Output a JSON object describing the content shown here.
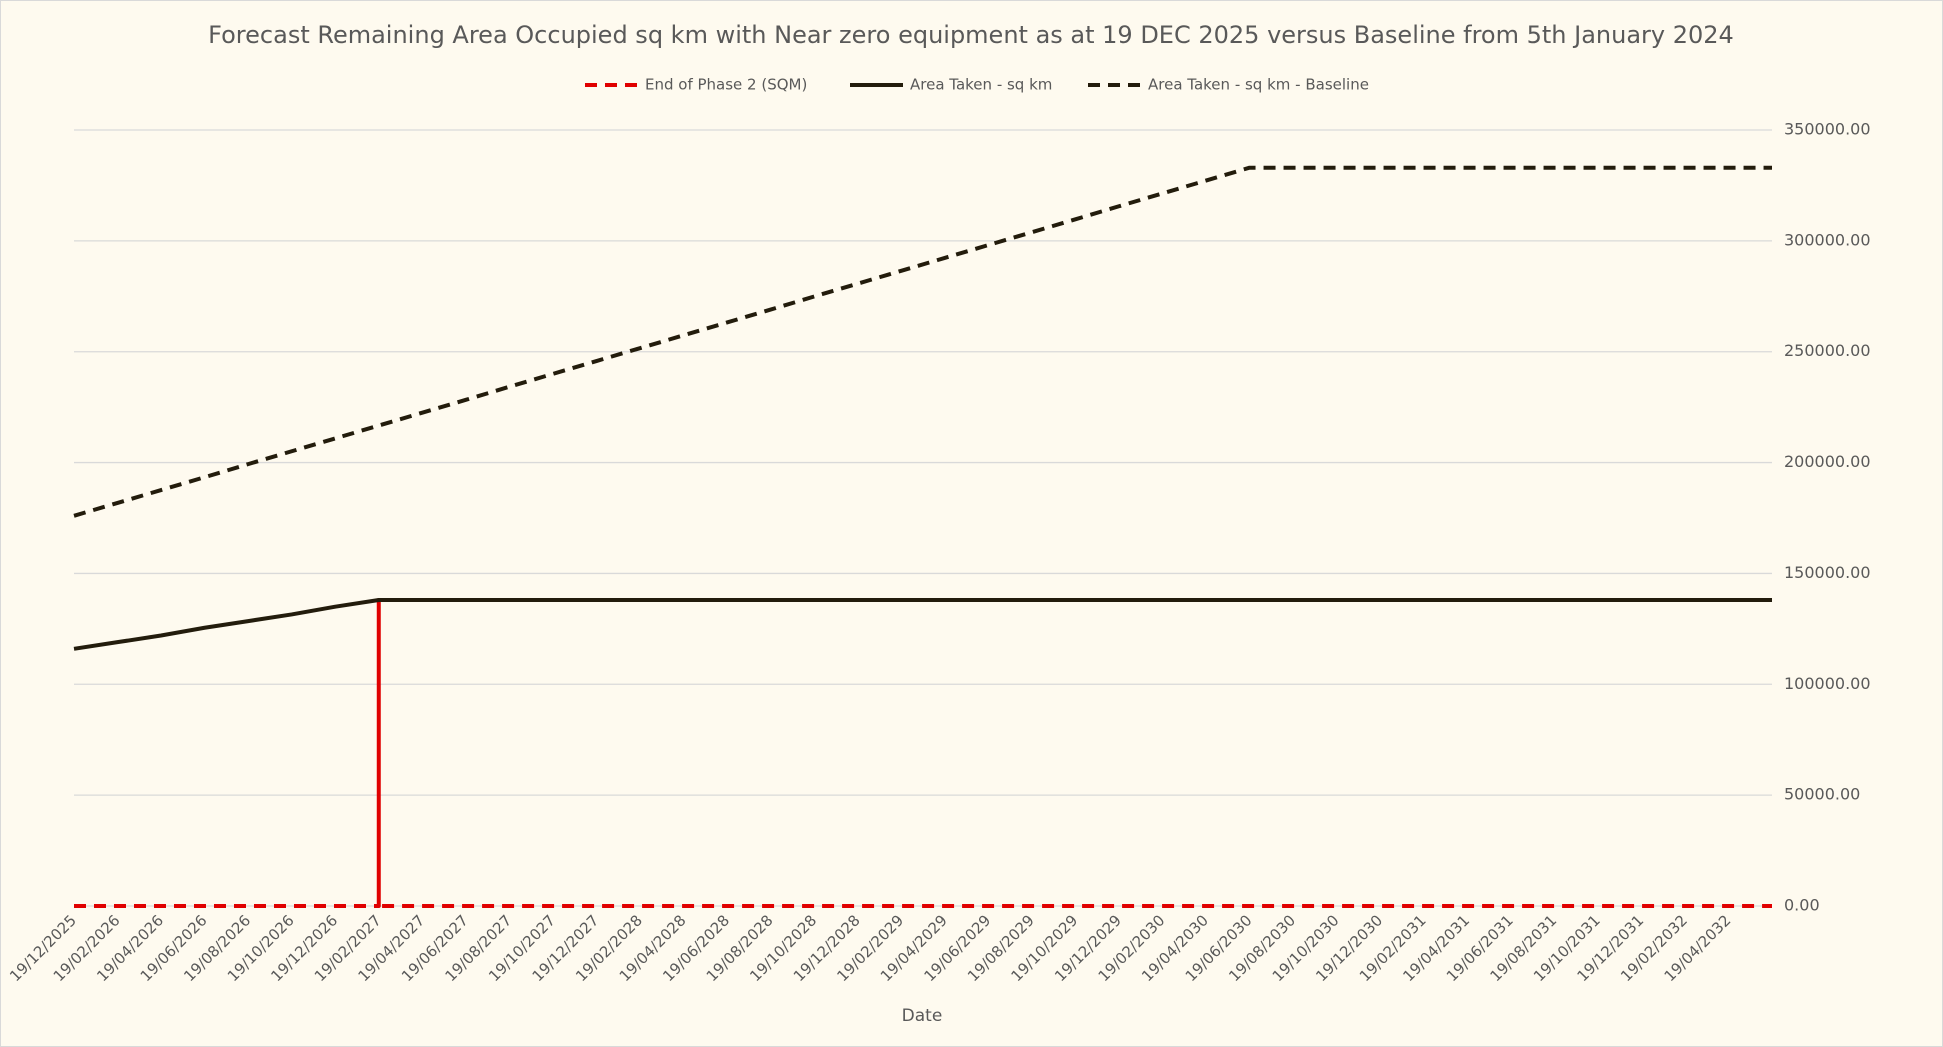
{
  "chart_data": {
    "type": "line",
    "title": "Forecast Remaining Area Occupied sq km with Near zero equipment as at 19 DEC 2025 versus Baseline from 5th January 2024",
    "x_label": "Date",
    "categories": [
      "19/12/2025",
      "19/02/2026",
      "19/04/2026",
      "19/06/2026",
      "19/08/2026",
      "19/10/2026",
      "19/12/2026",
      "19/02/2027",
      "19/04/2027",
      "19/06/2027",
      "19/08/2027",
      "19/10/2027",
      "19/12/2027",
      "19/02/2028",
      "19/04/2028",
      "19/06/2028",
      "19/08/2028",
      "19/10/2028",
      "19/12/2028",
      "19/02/2029",
      "19/04/2029",
      "19/06/2029",
      "19/08/2029",
      "19/10/2029",
      "19/12/2029",
      "19/02/2030",
      "19/04/2030",
      "19/06/2030",
      "19/08/2030",
      "19/10/2030",
      "19/12/2030",
      "19/02/2031",
      "19/04/2031",
      "19/06/2031",
      "19/08/2031",
      "19/10/2031",
      "19/12/2031",
      "19/02/2032",
      "19/04/2032",
      null
    ],
    "series": [
      {
        "name": "End of Phase 2 (SQM)",
        "color": "#e00000",
        "dash": true,
        "spike": true,
        "values": [
          0,
          0,
          0,
          0,
          0,
          0,
          0,
          138000,
          0,
          0,
          0,
          0,
          0,
          0,
          0,
          0,
          0,
          0,
          0,
          0,
          0,
          0,
          0,
          0,
          0,
          0,
          0,
          0,
          0,
          0,
          0,
          0,
          0,
          0,
          0,
          0,
          0,
          0,
          0,
          0
        ]
      },
      {
        "name": "Area Taken - sq km",
        "color": "#231c0c",
        "dash": false,
        "values": [
          116000,
          119000,
          122000,
          125500,
          128500,
          131500,
          135000,
          138000,
          138000,
          138000,
          138000,
          138000,
          138000,
          138000,
          138000,
          138000,
          138000,
          138000,
          138000,
          138000,
          138000,
          138000,
          138000,
          138000,
          138000,
          138000,
          138000,
          138000,
          138000,
          138000,
          138000,
          138000,
          138000,
          138000,
          138000,
          138000,
          138000,
          138000,
          138000,
          138000
        ]
      },
      {
        "name": "Area Taken - sq km - Baseline",
        "color": "#231c0c",
        "dash": true,
        "values": [
          176000,
          181800,
          187600,
          193400,
          199300,
          205100,
          210900,
          216700,
          222500,
          228300,
          234200,
          240000,
          245800,
          251600,
          257400,
          263200,
          269000,
          274900,
          280700,
          286500,
          292300,
          298100,
          303900,
          309700,
          315600,
          321400,
          327200,
          333000,
          333000,
          333000,
          333000,
          333000,
          333000,
          333000,
          333000,
          333000,
          333000,
          333000,
          333000,
          333000
        ]
      }
    ],
    "ylim": [
      0,
      350000
    ],
    "yticks": [
      {
        "value": 0,
        "label": "0.00"
      },
      {
        "value": 50000,
        "label": "50000.00"
      },
      {
        "value": 100000,
        "label": "100000.00"
      },
      {
        "value": 150000,
        "label": "150000.00"
      },
      {
        "value": 200000,
        "label": "200000.00"
      },
      {
        "value": 250000,
        "label": "250000.00"
      },
      {
        "value": 300000,
        "label": "300000.00"
      },
      {
        "value": 350000,
        "label": "350000.00"
      }
    ],
    "y_axis_side": "right",
    "grid": true,
    "legend": "top"
  }
}
